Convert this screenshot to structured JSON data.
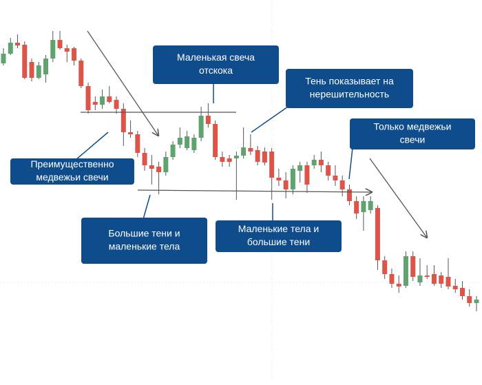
{
  "chart_data": {
    "type": "candlestick",
    "ylim": [
      0,
      554
    ],
    "up_color": "#5fa36f",
    "down_color": "#dc5548",
    "wick_color": "#555555",
    "candles": [
      [
        462,
        484,
        459,
        476
      ],
      [
        476,
        499,
        474,
        492
      ],
      [
        492,
        504,
        484,
        488
      ],
      [
        489,
        494,
        439,
        441
      ],
      [
        464,
        469,
        436,
        441
      ],
      [
        441,
        464,
        439,
        459
      ],
      [
        446,
        474,
        434,
        469
      ],
      [
        469,
        509,
        464,
        496
      ],
      [
        496,
        509,
        482,
        484
      ],
      [
        484,
        489,
        464,
        479
      ],
      [
        484,
        486,
        459,
        466
      ],
      [
        466,
        469,
        426,
        429
      ],
      [
        429,
        434,
        389,
        394
      ],
      [
        406,
        414,
        394,
        402
      ],
      [
        402,
        424,
        396,
        414
      ],
      [
        414,
        429,
        404,
        406
      ],
      [
        409,
        414,
        389,
        396
      ],
      [
        396,
        404,
        342,
        362
      ],
      [
        362,
        379,
        354,
        359
      ],
      [
        359,
        364,
        326,
        332
      ],
      [
        332,
        339,
        306,
        314
      ],
      [
        314,
        329,
        286,
        309
      ],
      [
        312,
        319,
        272,
        304
      ],
      [
        304,
        334,
        299,
        326
      ],
      [
        326,
        349,
        322,
        344
      ],
      [
        344,
        369,
        339,
        354
      ],
      [
        339,
        364,
        336,
        356
      ],
      [
        336,
        359,
        332,
        354
      ],
      [
        354,
        399,
        349,
        386
      ],
      [
        386,
        404,
        369,
        374
      ],
      [
        374,
        379,
        322,
        326
      ],
      [
        326,
        334,
        312,
        319
      ],
      [
        324,
        329,
        312,
        319
      ],
      [
        324,
        334,
        264,
        328
      ],
      [
        328,
        369,
        324,
        340
      ],
      [
        339,
        359,
        329,
        334
      ],
      [
        336,
        342,
        314,
        319
      ],
      [
        334,
        340,
        314,
        318
      ],
      [
        334,
        339,
        264,
        296
      ],
      [
        296,
        309,
        284,
        292
      ],
      [
        292,
        304,
        266,
        279
      ],
      [
        279,
        314,
        272,
        309
      ],
      [
        306,
        319,
        289,
        314
      ],
      [
        314,
        319,
        274,
        286
      ],
      [
        314,
        329,
        309,
        322
      ],
      [
        322,
        334,
        304,
        314
      ],
      [
        314,
        319,
        292,
        299
      ],
      [
        299,
        314,
        284,
        292
      ],
      [
        292,
        299,
        269,
        279
      ],
      [
        279,
        286,
        256,
        262
      ],
      [
        262,
        269,
        236,
        244
      ],
      [
        246,
        269,
        219,
        262
      ],
      [
        249,
        269,
        244,
        262
      ],
      [
        252,
        256,
        162,
        176
      ],
      [
        176,
        182,
        149,
        156
      ],
      [
        156,
        164,
        136,
        142
      ],
      [
        142,
        154,
        129,
        138
      ],
      [
        139,
        189,
        136,
        182
      ],
      [
        182,
        189,
        146,
        152
      ],
      [
        144,
        179,
        139,
        154
      ],
      [
        154,
        169,
        149,
        152
      ],
      [
        156,
        169,
        139,
        142
      ],
      [
        154,
        159,
        136,
        142
      ],
      [
        152,
        179,
        134,
        138
      ],
      [
        139,
        149,
        129,
        134
      ],
      [
        136,
        146,
        119,
        124
      ],
      [
        124,
        134,
        109,
        114
      ],
      [
        114,
        124,
        102,
        119
      ]
    ],
    "annotations": [
      {
        "lines": [
          "Маленькая свеча",
          "отскока"
        ]
      },
      {
        "lines": [
          "Тень показывает на",
          "нерешительность"
        ]
      },
      {
        "lines": [
          "Только медвежьи",
          "свечи"
        ]
      },
      {
        "lines": [
          "Преимущественно",
          "медвежьи свечи"
        ]
      },
      {
        "lines": [
          "Большие тени и",
          "маленькие тела"
        ]
      },
      {
        "lines": [
          "Маленькие тела и",
          "большие тени"
        ]
      }
    ]
  }
}
